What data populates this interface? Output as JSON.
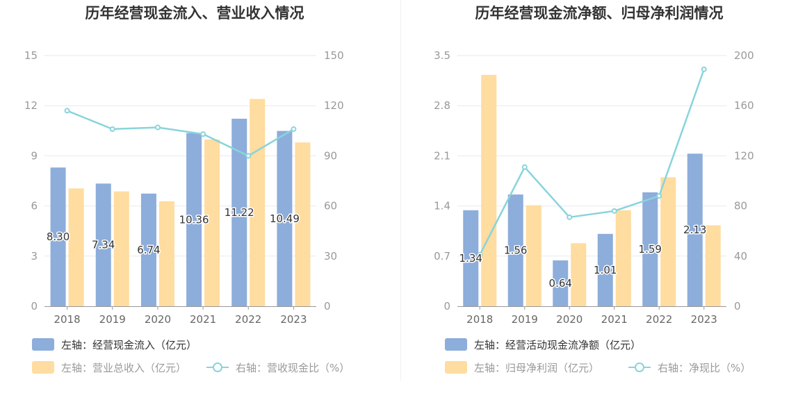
{
  "colors": {
    "bar_blue": "#8daddb",
    "bar_yellow": "#ffdc9f",
    "line_cyan": "#88d4dc",
    "grid": "#e6e9f0",
    "axis": "#999999"
  },
  "chart_data": [
    {
      "type": "bar",
      "title": "历年经营现金流入、营业收入情况",
      "categories": [
        "2018",
        "2019",
        "2020",
        "2021",
        "2022",
        "2023"
      ],
      "left_axis": {
        "ticks": [
          "0",
          "3",
          "6",
          "9",
          "12",
          "15"
        ],
        "ylim": [
          0,
          15
        ]
      },
      "right_axis": {
        "ticks": [
          "0",
          "30",
          "60",
          "90",
          "120",
          "150"
        ],
        "ylim": [
          0,
          150
        ]
      },
      "series": [
        {
          "name": "左轴：经营现金流入（亿元）",
          "axis": "left",
          "kind": "bar",
          "color": "#8daddb",
          "values": [
            8.3,
            7.34,
            6.74,
            10.36,
            11.22,
            10.49
          ],
          "labels": [
            "8.30",
            "7.34",
            "6.74",
            "10.36",
            "11.22",
            "10.49"
          ]
        },
        {
          "name": "左轴：营业总收入（亿元）",
          "axis": "left",
          "kind": "bar",
          "color": "#ffdc9f",
          "values": [
            7.05,
            6.87,
            6.28,
            9.98,
            12.4,
            9.8
          ]
        },
        {
          "name": "右轴：营收现金比（%）",
          "axis": "right",
          "kind": "line",
          "color": "#88d4dc",
          "values": [
            117,
            106,
            107,
            103,
            90,
            106
          ]
        }
      ],
      "legend": "bottom"
    },
    {
      "type": "bar",
      "title": "历年经营现金流净额、归母净利润情况",
      "categories": [
        "2018",
        "2019",
        "2020",
        "2021",
        "2022",
        "2023"
      ],
      "left_axis": {
        "ticks": [
          "0",
          "0.7",
          "1.4",
          "2.1",
          "2.8",
          "3.5"
        ],
        "ylim": [
          0,
          3.5
        ]
      },
      "right_axis": {
        "ticks": [
          "0",
          "40",
          "80",
          "120",
          "160",
          "200"
        ],
        "ylim": [
          0,
          200
        ]
      },
      "series": [
        {
          "name": "左轴：经营活动现金流净额（亿元）",
          "axis": "left",
          "kind": "bar",
          "color": "#8daddb",
          "values": [
            1.34,
            1.56,
            0.64,
            1.01,
            1.59,
            2.13
          ],
          "labels": [
            "1.34",
            "1.56",
            "0.64",
            "1.01",
            "1.59",
            "2.13"
          ]
        },
        {
          "name": "左轴：归母净利润（亿元）",
          "axis": "left",
          "kind": "bar",
          "color": "#ffdc9f",
          "values": [
            3.23,
            1.41,
            0.88,
            1.34,
            1.8,
            1.13
          ]
        },
        {
          "name": "右轴：净现比（%）",
          "axis": "right",
          "kind": "line",
          "color": "#88d4dc",
          "values": [
            41,
            111,
            71,
            76,
            88,
            189
          ]
        }
      ],
      "legend": "bottom"
    }
  ]
}
